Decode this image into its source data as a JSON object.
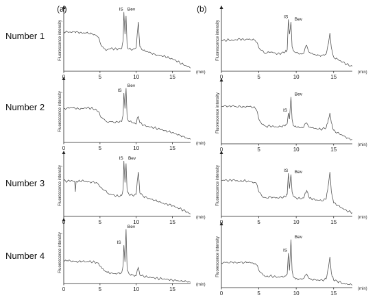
{
  "panel_labels": [
    "(a)",
    "(b)"
  ],
  "row_labels": [
    "Number 1",
    "Number 2",
    "Number 3",
    "Number 4"
  ],
  "chart_data": [
    {
      "type": "line",
      "panel": "(a)",
      "row": "Number 1",
      "ylabel": "Fluorescence intensity",
      "xunit": "(min)",
      "x_ticks": [
        0,
        5,
        10,
        15
      ],
      "xlim": [
        0,
        17.5
      ],
      "peak_labels": [
        {
          "text": "IS",
          "x": 8.3
        },
        {
          "text": "Bev",
          "x": 8.6
        }
      ],
      "series": [
        {
          "x": [
            0,
            0.5,
            1,
            1.5,
            2,
            2.5,
            3,
            3.5,
            4,
            4.5,
            4.8,
            5,
            5.3,
            5.7,
            6,
            6.5,
            7,
            7.5,
            8,
            8.2,
            8.3,
            8.45,
            8.6,
            8.75,
            9,
            9.5,
            10,
            10.15,
            10.3,
            10.5,
            11,
            11.5,
            12,
            12.5,
            13,
            13.5,
            14,
            14.5,
            15,
            15.5,
            16,
            16.5,
            17,
            17.5
          ],
          "y": [
            0.64,
            0.64,
            0.63,
            0.64,
            0.63,
            0.62,
            0.62,
            0.61,
            0.6,
            0.58,
            0.55,
            0.47,
            0.4,
            0.36,
            0.35,
            0.37,
            0.36,
            0.36,
            0.37,
            0.5,
            0.96,
            0.6,
            0.9,
            0.4,
            0.36,
            0.35,
            0.38,
            0.62,
            0.8,
            0.4,
            0.34,
            0.32,
            0.3,
            0.28,
            0.26,
            0.25,
            0.24,
            0.22,
            0.2,
            0.17,
            0.14,
            0.11,
            0.08,
            0.05
          ]
        }
      ]
    },
    {
      "type": "line",
      "panel": "(a)",
      "row": "Number 2",
      "ylabel": "Fluorescence intensity",
      "xunit": "(min)",
      "x_ticks": [
        0,
        5,
        10,
        15
      ],
      "xlim": [
        0,
        17.5
      ],
      "peak_labels": [
        {
          "text": "IS",
          "x": 8.1
        },
        {
          "text": "Bev",
          "x": 8.6
        }
      ],
      "series": [
        {
          "x": [
            0,
            0.5,
            1,
            1.5,
            2,
            2.5,
            3,
            3.5,
            4,
            4.5,
            4.8,
            5,
            5.3,
            5.7,
            6,
            6.5,
            7,
            7.5,
            8,
            8.2,
            8.3,
            8.45,
            8.6,
            8.75,
            9,
            9.5,
            10,
            10.15,
            10.3,
            10.5,
            11,
            11.5,
            12,
            12.5,
            13,
            13.5,
            14,
            14.5,
            15,
            15.5,
            16,
            16.5,
            17,
            17.5
          ],
          "y": [
            0.55,
            0.56,
            0.57,
            0.56,
            0.55,
            0.55,
            0.56,
            0.56,
            0.55,
            0.53,
            0.5,
            0.44,
            0.4,
            0.36,
            0.33,
            0.34,
            0.32,
            0.33,
            0.34,
            0.45,
            0.8,
            0.55,
            0.88,
            0.4,
            0.34,
            0.32,
            0.3,
            0.4,
            0.42,
            0.32,
            0.28,
            0.26,
            0.25,
            0.24,
            0.22,
            0.21,
            0.19,
            0.18,
            0.16,
            0.14,
            0.12,
            0.1,
            0.07,
            0.05
          ]
        }
      ]
    },
    {
      "type": "line",
      "panel": "(a)",
      "row": "Number 3",
      "ylabel": "Fluorescence intensity",
      "xunit": "(min)",
      "x_ticks": [
        0,
        5,
        10,
        15
      ],
      "xlim": [
        0,
        17.5
      ],
      "peak_labels": [
        {
          "text": "IS",
          "x": 8.3
        },
        {
          "text": "Bev",
          "x": 8.7
        }
      ],
      "series": [
        {
          "x": [
            0,
            0.5,
            1,
            1.5,
            1.6,
            1.7,
            1.8,
            2,
            2.5,
            3,
            3.5,
            4,
            4.5,
            4.8,
            5,
            5.3,
            5.7,
            6,
            6.5,
            7,
            7.5,
            8,
            8.2,
            8.3,
            8.45,
            8.6,
            8.75,
            9,
            9.5,
            10,
            10.15,
            10.3,
            10.5,
            11,
            11.5,
            12,
            12.5,
            13,
            13.5,
            14,
            14.5,
            15,
            15.5,
            16,
            16.5,
            17,
            17.5
          ],
          "y": [
            0.58,
            0.57,
            0.58,
            0.57,
            0.4,
            0.56,
            0.57,
            0.57,
            0.58,
            0.57,
            0.56,
            0.56,
            0.55,
            0.52,
            0.48,
            0.45,
            0.42,
            0.38,
            0.36,
            0.34,
            0.33,
            0.34,
            0.45,
            0.9,
            0.55,
            0.86,
            0.4,
            0.36,
            0.34,
            0.36,
            0.58,
            0.72,
            0.38,
            0.32,
            0.3,
            0.28,
            0.26,
            0.24,
            0.22,
            0.2,
            0.19,
            0.17,
            0.15,
            0.13,
            0.1,
            0.07,
            0.04
          ]
        }
      ]
    },
    {
      "type": "line",
      "panel": "(a)",
      "row": "Number 4",
      "ylabel": "Fluorescence intensity",
      "xunit": "(min)",
      "x_ticks": [
        0,
        5,
        10,
        15
      ],
      "xlim": [
        0,
        17.5
      ],
      "peak_labels": [
        {
          "text": "IS",
          "x": 8.0
        },
        {
          "text": "Bev",
          "x": 8.6
        }
      ],
      "series": [
        {
          "x": [
            0,
            0.5,
            1,
            1.5,
            2,
            2.5,
            3,
            3.5,
            4,
            4.5,
            4.8,
            5,
            5.3,
            5.7,
            6,
            6.5,
            7,
            7.5,
            8,
            8.2,
            8.3,
            8.45,
            8.6,
            8.75,
            9,
            9.5,
            10,
            10.15,
            10.3,
            10.5,
            11,
            11.5,
            12,
            12.5,
            13,
            13.5,
            14,
            14.5,
            15,
            15.5,
            16,
            16.5,
            17,
            17.5
          ],
          "y": [
            0.36,
            0.37,
            0.36,
            0.36,
            0.35,
            0.36,
            0.35,
            0.36,
            0.35,
            0.34,
            0.33,
            0.28,
            0.24,
            0.2,
            0.18,
            0.17,
            0.16,
            0.17,
            0.18,
            0.3,
            0.62,
            0.35,
            0.88,
            0.22,
            0.16,
            0.14,
            0.13,
            0.22,
            0.26,
            0.14,
            0.12,
            0.11,
            0.1,
            0.09,
            0.08,
            0.08,
            0.07,
            0.06,
            0.05,
            0.05,
            0.04,
            0.03,
            0.03,
            0.02
          ]
        }
      ]
    },
    {
      "type": "line",
      "panel": "(b)",
      "row": "Number 1",
      "ylabel": "Fluorescence intensity",
      "xunit": "(min)",
      "x_ticks": [
        0,
        5,
        10,
        15
      ],
      "xlim": [
        0,
        17.5
      ],
      "peak_labels": [
        {
          "text": "IS",
          "x": 9.0
        },
        {
          "text": "Bev",
          "x": 9.6
        }
      ],
      "series": [
        {
          "x": [
            0,
            0.5,
            1,
            1.5,
            2,
            2.5,
            3,
            3.5,
            4,
            4.5,
            4.8,
            5,
            5.3,
            5.7,
            6,
            6.5,
            7,
            7.5,
            8,
            8.5,
            8.8,
            8.95,
            9.1,
            9.3,
            9.45,
            9.6,
            9.8,
            10,
            10.5,
            11,
            11.2,
            11.4,
            11.7,
            12,
            12.5,
            13,
            13.5,
            14,
            14.3,
            14.5,
            14.7,
            15,
            15.5,
            16,
            16.5,
            17,
            17.5
          ],
          "y": [
            0.5,
            0.5,
            0.51,
            0.5,
            0.51,
            0.52,
            0.51,
            0.52,
            0.51,
            0.5,
            0.46,
            0.38,
            0.34,
            0.3,
            0.29,
            0.31,
            0.3,
            0.28,
            0.29,
            0.31,
            0.35,
            0.84,
            0.6,
            0.8,
            0.4,
            0.34,
            0.31,
            0.3,
            0.28,
            0.29,
            0.38,
            0.42,
            0.31,
            0.29,
            0.27,
            0.26,
            0.26,
            0.28,
            0.45,
            0.62,
            0.38,
            0.23,
            0.2,
            0.16,
            0.13,
            0.1,
            0.08
          ]
        }
      ]
    },
    {
      "type": "line",
      "panel": "(b)",
      "row": "Number 2",
      "ylabel": "Fluorescence intensity",
      "xunit": "(min)",
      "x_ticks": [
        0,
        5,
        10,
        15
      ],
      "xlim": [
        0,
        17.5
      ],
      "peak_labels": [
        {
          "text": "IS",
          "x": 8.9
        },
        {
          "text": "Bev",
          "x": 9.6
        }
      ],
      "series": [
        {
          "x": [
            0,
            0.5,
            1,
            1.5,
            2,
            2.5,
            3,
            3.5,
            4,
            4.5,
            4.8,
            5,
            5.3,
            5.7,
            6,
            6.5,
            7,
            7.5,
            8,
            8.5,
            8.8,
            8.95,
            9.1,
            9.3,
            9.45,
            9.6,
            9.8,
            10,
            10.5,
            11,
            11.2,
            11.4,
            11.7,
            12,
            12.5,
            13,
            13.5,
            14,
            14.3,
            14.5,
            14.7,
            15,
            15.5,
            16,
            16.5,
            17,
            17.5
          ],
          "y": [
            0.6,
            0.62,
            0.61,
            0.62,
            0.6,
            0.61,
            0.6,
            0.61,
            0.6,
            0.58,
            0.52,
            0.4,
            0.34,
            0.3,
            0.28,
            0.29,
            0.28,
            0.27,
            0.28,
            0.29,
            0.33,
            0.5,
            0.4,
            0.76,
            0.4,
            0.3,
            0.28,
            0.27,
            0.26,
            0.27,
            0.33,
            0.34,
            0.27,
            0.26,
            0.25,
            0.24,
            0.24,
            0.26,
            0.4,
            0.5,
            0.34,
            0.22,
            0.18,
            0.15,
            0.12,
            0.09,
            0.07
          ]
        }
      ]
    },
    {
      "type": "line",
      "panel": "(b)",
      "row": "Number 3",
      "ylabel": "Fluorescence intensity",
      "xunit": "(min)",
      "x_ticks": [
        0,
        5,
        10,
        15
      ],
      "xlim": [
        0,
        17.5
      ],
      "peak_labels": [
        {
          "text": "IS",
          "x": 9.0
        },
        {
          "text": "Bev",
          "x": 9.6
        }
      ],
      "series": [
        {
          "x": [
            0,
            0.5,
            1,
            1.5,
            2,
            2.5,
            3,
            3.5,
            4,
            4.5,
            4.8,
            5,
            5.3,
            5.7,
            6,
            6.5,
            7,
            7.5,
            8,
            8.5,
            8.8,
            8.95,
            9.1,
            9.3,
            9.45,
            9.6,
            9.8,
            10,
            10.5,
            11,
            11.2,
            11.4,
            11.7,
            12,
            12.5,
            13,
            13.5,
            14,
            14.3,
            14.5,
            14.7,
            15,
            15.5,
            16,
            16.5,
            17,
            17.5
          ],
          "y": [
            0.58,
            0.59,
            0.58,
            0.59,
            0.58,
            0.57,
            0.58,
            0.57,
            0.56,
            0.55,
            0.5,
            0.4,
            0.36,
            0.31,
            0.3,
            0.32,
            0.31,
            0.3,
            0.31,
            0.32,
            0.36,
            0.7,
            0.45,
            0.68,
            0.4,
            0.33,
            0.31,
            0.3,
            0.29,
            0.3,
            0.38,
            0.42,
            0.31,
            0.29,
            0.27,
            0.26,
            0.25,
            0.28,
            0.52,
            0.72,
            0.4,
            0.22,
            0.18,
            0.14,
            0.11,
            0.08,
            0.06
          ]
        }
      ]
    },
    {
      "type": "line",
      "panel": "(b)",
      "row": "Number 4",
      "ylabel": "Fluorescence intensity",
      "xunit": "(min)",
      "x_ticks": [
        0,
        5,
        10,
        15
      ],
      "xlim": [
        0,
        17.5
      ],
      "peak_labels": [
        {
          "text": "IS",
          "x": 8.9
        },
        {
          "text": "Bev",
          "x": 9.6
        }
      ],
      "series": [
        {
          "x": [
            0,
            0.5,
            1,
            1.5,
            2,
            2.5,
            3,
            3.5,
            4,
            4.5,
            4.8,
            5,
            5.3,
            5.7,
            6,
            6.5,
            7,
            7.5,
            8,
            8.5,
            8.8,
            8.95,
            9.1,
            9.3,
            9.45,
            9.6,
            9.8,
            10,
            10.5,
            11,
            11.2,
            11.4,
            11.7,
            12,
            12.5,
            13,
            13.5,
            14,
            14.3,
            14.5,
            14.7,
            15,
            15.5,
            16,
            16.5,
            17,
            17.5
          ],
          "y": [
            0.4,
            0.41,
            0.4,
            0.41,
            0.4,
            0.41,
            0.4,
            0.41,
            0.4,
            0.39,
            0.36,
            0.28,
            0.24,
            0.2,
            0.18,
            0.19,
            0.18,
            0.17,
            0.18,
            0.19,
            0.22,
            0.56,
            0.28,
            0.78,
            0.28,
            0.18,
            0.16,
            0.15,
            0.14,
            0.15,
            0.2,
            0.22,
            0.15,
            0.14,
            0.13,
            0.12,
            0.12,
            0.14,
            0.32,
            0.5,
            0.24,
            0.12,
            0.1,
            0.08,
            0.06,
            0.05,
            0.04
          ]
        }
      ]
    }
  ]
}
